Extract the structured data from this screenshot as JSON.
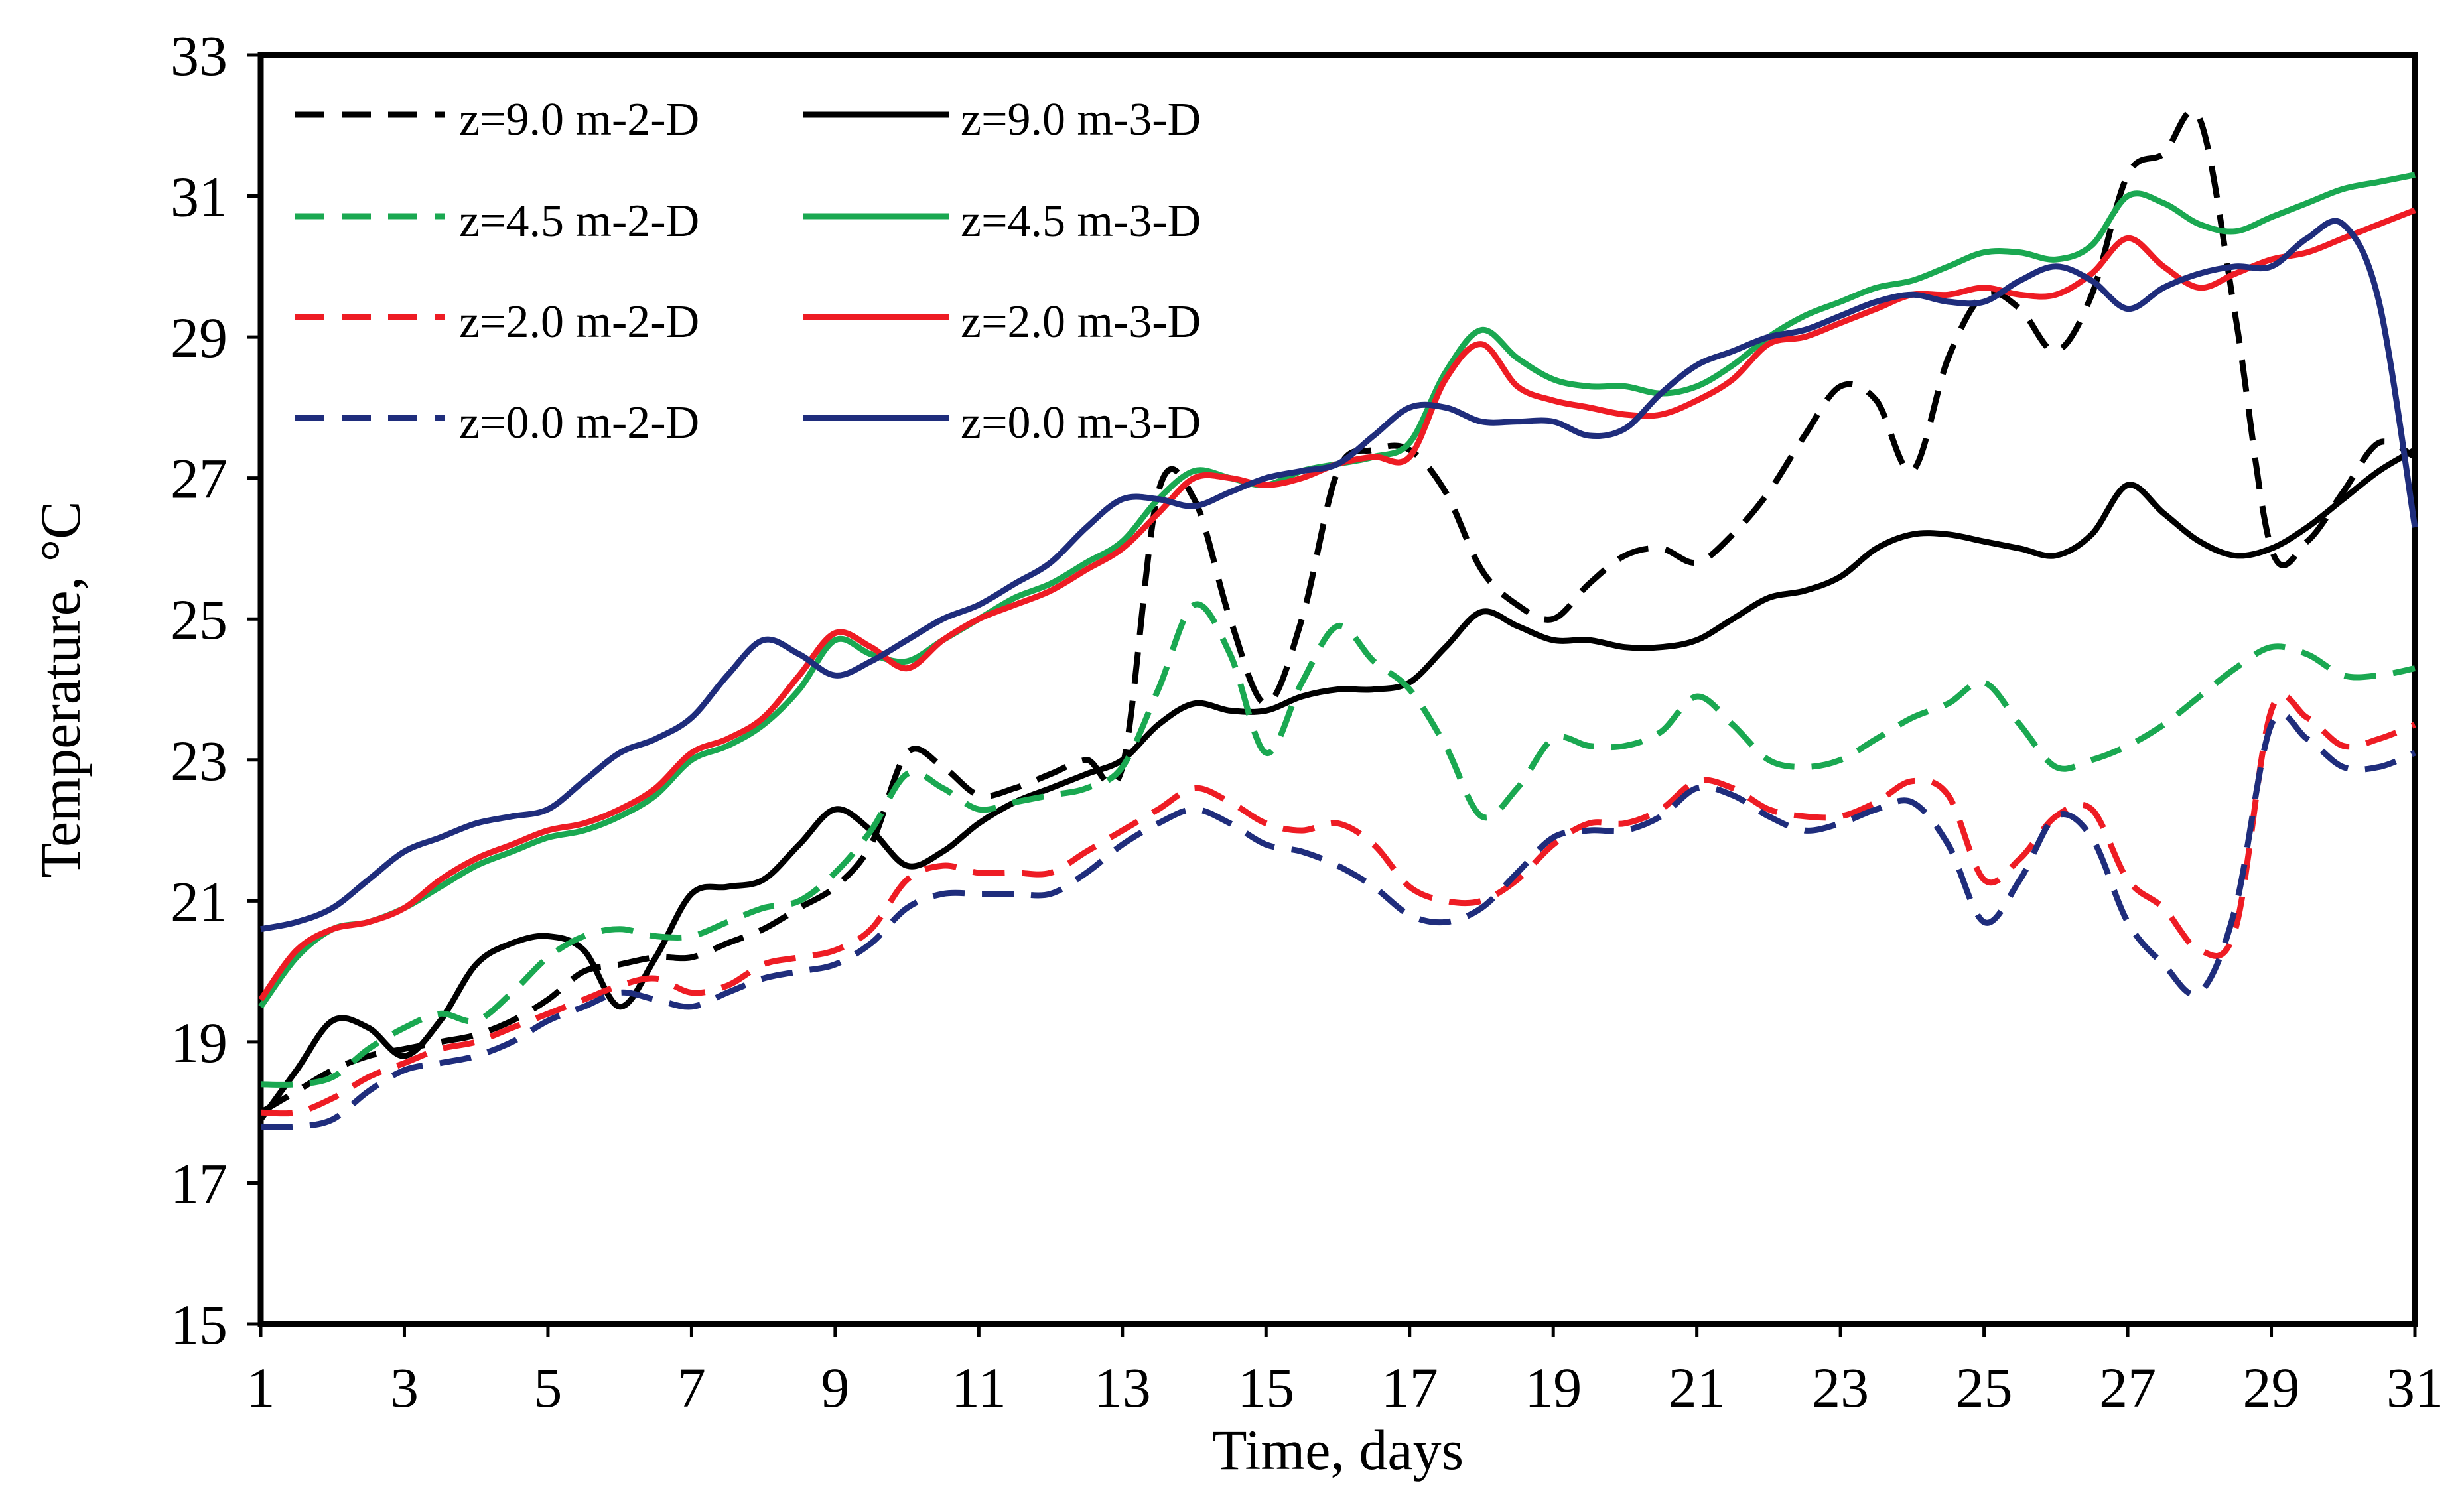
{
  "chart_data": {
    "type": "line",
    "title": "",
    "xlabel": "Time, days",
    "ylabel": "Temperature,  °C",
    "xlim": [
      1,
      31
    ],
    "ylim": [
      15,
      33
    ],
    "xticks": [
      1,
      3,
      5,
      7,
      9,
      11,
      13,
      15,
      17,
      19,
      21,
      23,
      25,
      27,
      29,
      31
    ],
    "yticks": [
      15,
      17,
      19,
      21,
      23,
      25,
      27,
      29,
      31,
      33
    ],
    "grid": false,
    "legend_position": "top-left",
    "colors": {
      "z9": "#000000",
      "z45": "#1aa851",
      "z2": "#ee1c24",
      "z0": "#1f2d7c"
    },
    "x": [
      1,
      1.5,
      2,
      2.5,
      3,
      3.5,
      4,
      4.5,
      5,
      5.5,
      6,
      6.5,
      7,
      7.5,
      8,
      8.5,
      9,
      9.5,
      10,
      10.5,
      11,
      11.5,
      12,
      12.5,
      13,
      13.5,
      14,
      14.5,
      15,
      15.5,
      16,
      16.5,
      17,
      17.5,
      18,
      18.5,
      19,
      19.5,
      20,
      20.5,
      21,
      21.5,
      22,
      22.5,
      23,
      23.5,
      24,
      24.5,
      25,
      25.5,
      26,
      26.5,
      27,
      27.5,
      28,
      28.5,
      29,
      29.5,
      30,
      30.5,
      31
    ],
    "series": [
      {
        "name": "z=9.0 m-2-D",
        "color_key": "z9",
        "dashed": true,
        "values": [
          18.0,
          18.3,
          18.6,
          18.8,
          18.9,
          19.0,
          19.1,
          19.3,
          19.6,
          20.0,
          20.1,
          20.2,
          20.2,
          20.4,
          20.6,
          20.9,
          21.2,
          21.8,
          23.1,
          22.9,
          22.5,
          22.6,
          22.8,
          23.0,
          22.9,
          26.8,
          26.7,
          25.0,
          23.8,
          25.0,
          27.1,
          27.4,
          27.4,
          26.8,
          25.7,
          25.2,
          25.0,
          25.5,
          25.9,
          26.0,
          25.8,
          26.2,
          26.8,
          27.6,
          28.3,
          28.1,
          27.1,
          28.7,
          29.6,
          29.4,
          28.8,
          29.6,
          31.3,
          31.6,
          32.1,
          29.3,
          26.0,
          26.1,
          26.8,
          27.5,
          27.3
        ]
      },
      {
        "name": "z=9.0 m-3-D",
        "color_key": "z9",
        "dashed": false,
        "values": [
          17.9,
          18.6,
          19.3,
          19.2,
          18.8,
          19.3,
          20.1,
          20.4,
          20.5,
          20.3,
          19.5,
          20.2,
          21.1,
          21.2,
          21.3,
          21.8,
          22.3,
          22.0,
          21.5,
          21.7,
          22.1,
          22.4,
          22.6,
          22.8,
          23.0,
          23.5,
          23.8,
          23.7,
          23.7,
          23.9,
          24.0,
          24.0,
          24.1,
          24.6,
          25.1,
          24.9,
          24.7,
          24.7,
          24.6,
          24.6,
          24.7,
          25.0,
          25.3,
          25.4,
          25.6,
          26.0,
          26.2,
          26.2,
          26.1,
          26.0,
          25.9,
          26.2,
          26.9,
          26.5,
          26.1,
          25.9,
          26.0,
          26.3,
          26.7,
          27.1,
          27.4
        ]
      },
      {
        "name": "z=4.5 m-2-D",
        "color_key": "z45",
        "dashed": true,
        "values": [
          18.4,
          18.4,
          18.5,
          18.9,
          19.2,
          19.4,
          19.3,
          19.7,
          20.2,
          20.5,
          20.6,
          20.5,
          20.5,
          20.7,
          20.9,
          21.0,
          21.4,
          22.0,
          22.8,
          22.6,
          22.3,
          22.4,
          22.5,
          22.6,
          22.9,
          24.0,
          25.2,
          24.5,
          23.1,
          24.1,
          24.9,
          24.4,
          24.0,
          23.2,
          22.2,
          22.6,
          23.3,
          23.2,
          23.2,
          23.4,
          23.9,
          23.5,
          23.0,
          22.9,
          23.0,
          23.3,
          23.6,
          23.8,
          24.1,
          23.5,
          22.9,
          23.0,
          23.2,
          23.5,
          23.9,
          24.3,
          24.6,
          24.5,
          24.2,
          24.2,
          24.3
        ]
      },
      {
        "name": "z=4.5 m-3-D",
        "color_key": "z45",
        "dashed": false,
        "values": [
          19.5,
          20.2,
          20.6,
          20.7,
          20.9,
          21.2,
          21.5,
          21.7,
          21.9,
          22.0,
          22.2,
          22.5,
          23.0,
          23.2,
          23.5,
          24.0,
          24.7,
          24.5,
          24.4,
          24.7,
          25.0,
          25.3,
          25.5,
          25.8,
          26.1,
          26.7,
          27.1,
          27.0,
          26.9,
          27.1,
          27.2,
          27.3,
          27.5,
          28.5,
          29.1,
          28.7,
          28.4,
          28.3,
          28.3,
          28.2,
          28.3,
          28.6,
          29.0,
          29.3,
          29.5,
          29.7,
          29.8,
          30.0,
          30.2,
          30.2,
          30.1,
          30.3,
          31.0,
          30.9,
          30.6,
          30.5,
          30.7,
          30.9,
          31.1,
          31.2,
          31.3
        ]
      },
      {
        "name": "z=2.0 m-2-D",
        "color_key": "z2",
        "dashed": true,
        "values": [
          18.0,
          18.0,
          18.2,
          18.5,
          18.7,
          18.9,
          19.0,
          19.2,
          19.4,
          19.6,
          19.8,
          19.9,
          19.7,
          19.8,
          20.1,
          20.2,
          20.3,
          20.6,
          21.3,
          21.5,
          21.4,
          21.4,
          21.4,
          21.7,
          22.0,
          22.3,
          22.6,
          22.4,
          22.1,
          22.0,
          22.1,
          21.8,
          21.2,
          21.0,
          21.0,
          21.3,
          21.8,
          22.1,
          22.1,
          22.3,
          22.7,
          22.6,
          22.3,
          22.2,
          22.2,
          22.4,
          22.7,
          22.5,
          21.3,
          21.6,
          22.2,
          22.3,
          21.3,
          20.9,
          20.3,
          20.6,
          23.7,
          23.6,
          23.2,
          23.3,
          23.5
        ]
      },
      {
        "name": "z=2.0 m-3-D",
        "color_key": "z2",
        "dashed": false,
        "values": [
          19.6,
          20.3,
          20.6,
          20.7,
          20.9,
          21.3,
          21.6,
          21.8,
          22.0,
          22.1,
          22.3,
          22.6,
          23.1,
          23.3,
          23.6,
          24.2,
          24.8,
          24.6,
          24.3,
          24.7,
          25.0,
          25.2,
          25.4,
          25.7,
          26.0,
          26.5,
          27.0,
          27.0,
          26.9,
          27.0,
          27.2,
          27.3,
          27.3,
          28.4,
          28.9,
          28.3,
          28.1,
          28.0,
          27.9,
          27.9,
          28.1,
          28.4,
          28.9,
          29.0,
          29.2,
          29.4,
          29.6,
          29.6,
          29.7,
          29.6,
          29.6,
          29.9,
          30.4,
          30.0,
          29.7,
          29.9,
          30.1,
          30.2,
          30.4,
          30.6,
          30.8
        ]
      },
      {
        "name": "z=0.0 m-2-D",
        "color_key": "z0",
        "dashed": true,
        "values": [
          17.8,
          17.8,
          17.9,
          18.3,
          18.6,
          18.7,
          18.8,
          19.0,
          19.3,
          19.5,
          19.7,
          19.6,
          19.5,
          19.7,
          19.9,
          20.0,
          20.1,
          20.4,
          20.9,
          21.1,
          21.1,
          21.1,
          21.1,
          21.4,
          21.8,
          22.1,
          22.3,
          22.1,
          21.8,
          21.7,
          21.5,
          21.2,
          20.8,
          20.7,
          20.9,
          21.4,
          21.9,
          22.0,
          22.0,
          22.2,
          22.6,
          22.5,
          22.2,
          22.0,
          22.1,
          22.3,
          22.4,
          21.8,
          20.7,
          21.3,
          22.2,
          21.9,
          20.7,
          20.1,
          19.7,
          20.9,
          23.5,
          23.3,
          22.9,
          22.9,
          23.1
        ]
      },
      {
        "name": "z=0.0 m-3-D",
        "color_key": "z0",
        "dashed": false,
        "values": [
          20.6,
          20.7,
          20.9,
          21.3,
          21.7,
          21.9,
          22.1,
          22.2,
          22.3,
          22.7,
          23.1,
          23.3,
          23.6,
          24.2,
          24.7,
          24.5,
          24.2,
          24.4,
          24.7,
          25.0,
          25.2,
          25.5,
          25.8,
          26.3,
          26.7,
          26.7,
          26.6,
          26.8,
          27.0,
          27.1,
          27.2,
          27.6,
          28.0,
          28.0,
          27.8,
          27.8,
          27.8,
          27.6,
          27.7,
          28.2,
          28.6,
          28.8,
          29.0,
          29.1,
          29.3,
          29.5,
          29.6,
          29.5,
          29.5,
          29.8,
          30.0,
          29.8,
          29.4,
          29.7,
          29.9,
          30.0,
          30.0,
          30.4,
          30.6,
          29.5,
          26.3
        ]
      }
    ]
  }
}
